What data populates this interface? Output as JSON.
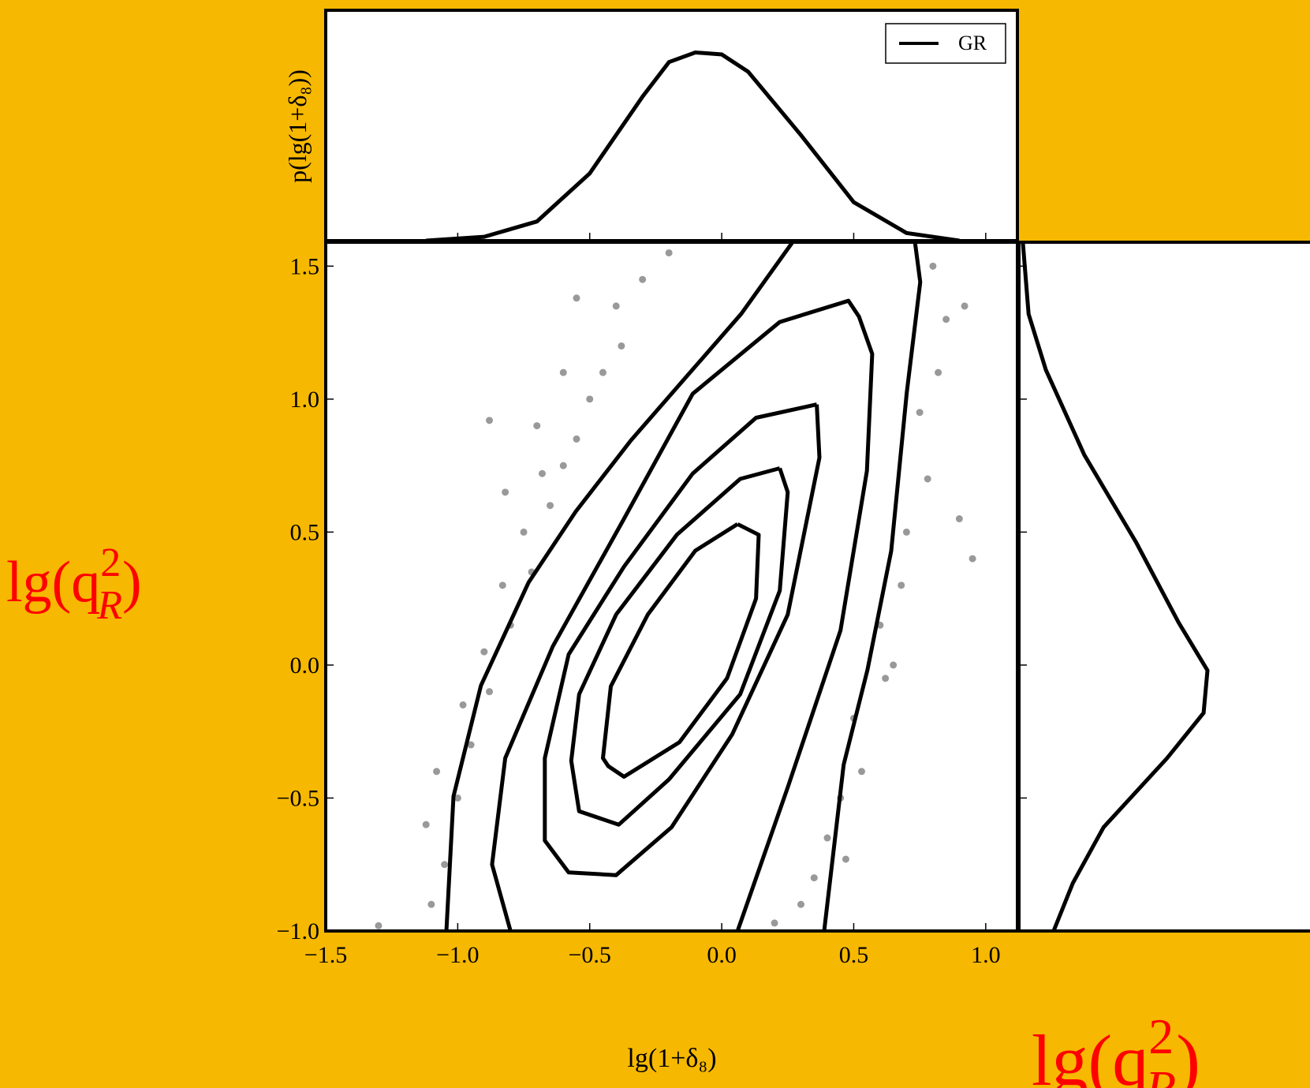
{
  "chart_data": [
    {
      "type": "contour",
      "x_label": "lg(1+δ₈)",
      "y_label": {
        "base": "lg(q",
        "sup": "2",
        "sub": "R",
        "close": ")"
      },
      "xlim": [
        -1.5,
        1.12
      ],
      "ylim": [
        -1.0,
        1.59
      ],
      "xticks": [
        {
          "value": -1.5,
          "label": "−1.5"
        },
        {
          "value": -1.0,
          "label": "−1.0"
        },
        {
          "value": -0.5,
          "label": "−0.5"
        },
        {
          "value": 0.0,
          "label": "0.0"
        },
        {
          "value": 0.5,
          "label": "0.5"
        },
        {
          "value": 1.0,
          "label": "1.0"
        }
      ],
      "yticks": [
        {
          "value": -1.0,
          "label": "−1.0"
        },
        {
          "value": -0.5,
          "label": "−0.5"
        },
        {
          "value": 0.0,
          "label": "0.0"
        },
        {
          "value": 0.5,
          "label": "0.5"
        },
        {
          "value": 1.0,
          "label": "1.0"
        },
        {
          "value": 1.5,
          "label": "1.5"
        }
      ],
      "color": "#000000",
      "scatter": {
        "color": "#000000",
        "x": [
          -1.1,
          -1.05,
          -1.12,
          -1.0,
          -1.08,
          -0.95,
          -0.98,
          -0.88,
          -0.9,
          -0.8,
          -0.83,
          -0.72,
          -0.75,
          -0.65,
          -0.6,
          -0.68,
          -0.55,
          -0.5,
          -0.45,
          -0.38,
          -0.4,
          -0.3,
          -0.2,
          -0.7,
          -0.6,
          -0.82,
          -0.88,
          -1.3,
          -0.55,
          0.8,
          0.85,
          0.82,
          0.75,
          0.78,
          0.7,
          0.68,
          0.6,
          0.62,
          0.5,
          0.53,
          0.45,
          0.4,
          0.35,
          0.3,
          0.2,
          0.47,
          0.92,
          0.9,
          0.65,
          0.95
        ],
        "y": [
          -0.9,
          -0.75,
          -0.6,
          -0.5,
          -0.4,
          -0.3,
          -0.15,
          -0.1,
          0.05,
          0.15,
          0.3,
          0.35,
          0.5,
          0.6,
          0.75,
          0.72,
          0.85,
          1.0,
          1.1,
          1.2,
          1.35,
          1.45,
          1.55,
          0.9,
          1.1,
          0.65,
          0.92,
          -0.98,
          1.38,
          1.5,
          1.3,
          1.1,
          0.95,
          0.7,
          0.5,
          0.3,
          0.15,
          -0.05,
          -0.2,
          -0.4,
          -0.5,
          -0.65,
          -0.8,
          -0.9,
          -0.97,
          -0.73,
          1.35,
          0.55,
          0.0,
          0.4
        ]
      },
      "contours": [
        {
          "x": [
            -1.043,
            -1.016,
            -0.912,
            -0.732,
            -0.553,
            -0.344,
            -0.135,
            0.074,
            0.274,
            0.731,
            0.752,
            0.701,
            0.642,
            0.552,
            0.462,
            0.388
          ],
          "y": [
            -1.0,
            -0.494,
            -0.077,
            0.31,
            0.577,
            0.845,
            1.083,
            1.321,
            1.598,
            1.598,
            1.44,
            1.024,
            0.429,
            -0.018,
            -0.375,
            -1.0
          ]
        },
        {
          "x": [
            -0.8,
            -0.87,
            -0.82,
            -0.64,
            -0.37,
            -0.11,
            0.22,
            0.48,
            0.52,
            0.57,
            0.55,
            0.45,
            0.25,
            0.06
          ],
          "y": [
            -1.0,
            -0.75,
            -0.35,
            0.07,
            0.55,
            1.02,
            1.29,
            1.37,
            1.31,
            1.17,
            0.73,
            0.13,
            -0.46,
            -1.0
          ]
        },
        {
          "x": [
            0.36,
            0.13,
            -0.11,
            -0.37,
            -0.58,
            -0.67,
            -0.67,
            -0.58,
            -0.4,
            -0.19,
            0.04,
            0.25,
            0.37,
            0.36
          ],
          "y": [
            0.98,
            0.93,
            0.72,
            0.37,
            0.04,
            -0.35,
            -0.66,
            -0.78,
            -0.79,
            -0.61,
            -0.26,
            0.19,
            0.78,
            0.98
          ]
        },
        {
          "x": [
            0.22,
            0.07,
            -0.17,
            -0.4,
            -0.54,
            -0.57,
            -0.54,
            -0.39,
            -0.2,
            0.07,
            0.22,
            0.25,
            0.22
          ],
          "y": [
            0.74,
            0.7,
            0.49,
            0.19,
            -0.11,
            -0.36,
            -0.55,
            -0.6,
            -0.43,
            -0.11,
            0.28,
            0.65,
            0.74
          ]
        },
        {
          "x": [
            0.06,
            -0.1,
            -0.28,
            -0.42,
            -0.45,
            -0.43,
            -0.37,
            -0.16,
            0.02,
            0.13,
            0.14,
            0.06
          ],
          "y": [
            0.53,
            0.43,
            0.19,
            -0.08,
            -0.35,
            -0.38,
            -0.42,
            -0.29,
            -0.05,
            0.25,
            0.49,
            0.53
          ]
        }
      ]
    },
    {
      "type": "line",
      "y_label": "p(lg(1+δ₈))",
      "xlim": [
        -1.5,
        1.12
      ],
      "ylim": [
        0,
        1.2
      ],
      "legend": "upper right",
      "series": [
        {
          "name": "GR",
          "color": "#000000",
          "x": [
            -1.12,
            -0.9,
            -0.7,
            -0.5,
            -0.3,
            -0.2,
            -0.1,
            0.0,
            0.1,
            0.3,
            0.5,
            0.7,
            0.9
          ],
          "values": [
            0.0,
            0.02,
            0.1,
            0.35,
            0.75,
            0.93,
            0.98,
            0.97,
            0.88,
            0.55,
            0.2,
            0.04,
            0.0
          ]
        }
      ]
    },
    {
      "type": "line",
      "orientation": "horizontal",
      "x_label": {
        "base": "lg(q",
        "sup": "2",
        "sub": "R",
        "close": ")"
      },
      "xlim": [
        0,
        1.64
      ],
      "ylim": [
        -1.0,
        1.59
      ],
      "series": [
        {
          "color": "#000000",
          "y": [
            1.59,
            1.32,
            1.11,
            0.79,
            0.46,
            0.16,
            -0.02,
            -0.18,
            -0.35,
            -0.61,
            -0.82,
            -1.0
          ],
          "values": [
            0.02,
            0.05,
            0.14,
            0.34,
            0.61,
            0.83,
            0.98,
            0.96,
            0.77,
            0.44,
            0.28,
            0.18
          ]
        }
      ]
    }
  ]
}
